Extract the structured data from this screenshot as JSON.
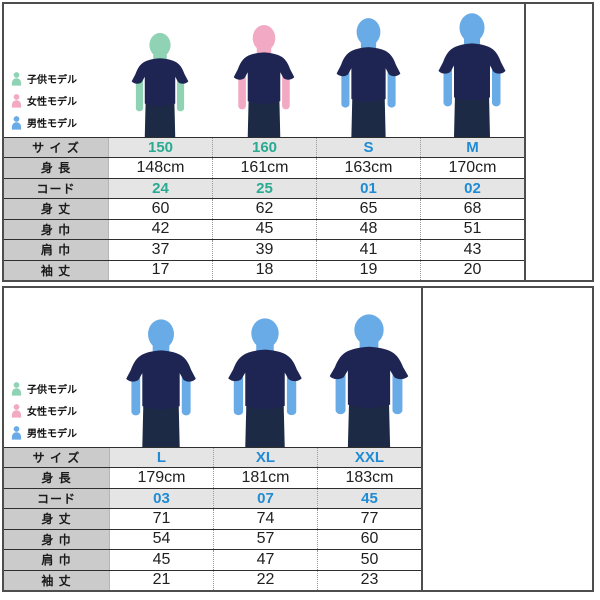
{
  "legend": {
    "items": [
      {
        "id": "child",
        "label": "子供モデル"
      },
      {
        "id": "female",
        "label": "女性モデル"
      },
      {
        "id": "male",
        "label": "男性モデル"
      }
    ]
  },
  "colors": {
    "child_skin": "#8fd2b4",
    "female_skin": "#f2a9c4",
    "male_skin": "#68abe6",
    "tshirt_navy": "#1e2553",
    "pants_dark": "#1d2a45",
    "teal_text": "#29ab92",
    "blue_text": "#1e8bd4",
    "label_cell_bg": "#cbcbcb",
    "shaded_cell_bg": "#e5e5e5",
    "frame": "#4d4d4d"
  },
  "panels": [
    {
      "models": [
        {
          "size": "150",
          "model": "child"
        },
        {
          "size": "160",
          "model": "female"
        },
        {
          "size": "S",
          "model": "male"
        },
        {
          "size": "M",
          "model": "male"
        }
      ]
    },
    {
      "models": [
        {
          "size": "L",
          "model": "male"
        },
        {
          "size": "XL",
          "model": "male"
        },
        {
          "size": "XXL",
          "model": "male"
        }
      ]
    }
  ],
  "chart_data": [
    {
      "type": "table",
      "title": "size spec 150-M",
      "accent_per_column": [
        "teal",
        "teal",
        "blue",
        "blue"
      ],
      "rows": [
        {
          "label": "サ イ ズ",
          "shaded": true,
          "colored": true,
          "cells": [
            "150",
            "160",
            "S",
            "M"
          ]
        },
        {
          "label": "身 長",
          "shaded": false,
          "colored": false,
          "cells": [
            "148cm",
            "161cm",
            "163cm",
            "170cm"
          ]
        },
        {
          "label": "コード",
          "shaded": true,
          "colored": true,
          "cells": [
            "24",
            "25",
            "01",
            "02"
          ]
        },
        {
          "label": "身 丈",
          "shaded": false,
          "colored": false,
          "cells": [
            "60",
            "62",
            "65",
            "68"
          ]
        },
        {
          "label": "身 巾",
          "shaded": false,
          "colored": false,
          "cells": [
            "42",
            "45",
            "48",
            "51"
          ]
        },
        {
          "label": "肩 巾",
          "shaded": false,
          "colored": false,
          "cells": [
            "37",
            "39",
            "41",
            "43"
          ]
        },
        {
          "label": "袖 丈",
          "shaded": false,
          "colored": false,
          "cells": [
            "17",
            "18",
            "19",
            "20"
          ]
        }
      ]
    },
    {
      "type": "table",
      "title": "size spec L-XXL",
      "accent_per_column": [
        "blue",
        "blue",
        "blue"
      ],
      "rows": [
        {
          "label": "サ イ ズ",
          "shaded": true,
          "colored": true,
          "cells": [
            "L",
            "XL",
            "XXL"
          ]
        },
        {
          "label": "身 長",
          "shaded": false,
          "colored": false,
          "cells": [
            "179cm",
            "181cm",
            "183cm"
          ]
        },
        {
          "label": "コード",
          "shaded": true,
          "colored": true,
          "cells": [
            "03",
            "07",
            "45"
          ]
        },
        {
          "label": "身 丈",
          "shaded": false,
          "colored": false,
          "cells": [
            "71",
            "74",
            "77"
          ]
        },
        {
          "label": "身 巾",
          "shaded": false,
          "colored": false,
          "cells": [
            "54",
            "57",
            "60"
          ]
        },
        {
          "label": "肩 巾",
          "shaded": false,
          "colored": false,
          "cells": [
            "45",
            "47",
            "50"
          ]
        },
        {
          "label": "袖 丈",
          "shaded": false,
          "colored": false,
          "cells": [
            "21",
            "22",
            "23"
          ]
        }
      ]
    }
  ]
}
